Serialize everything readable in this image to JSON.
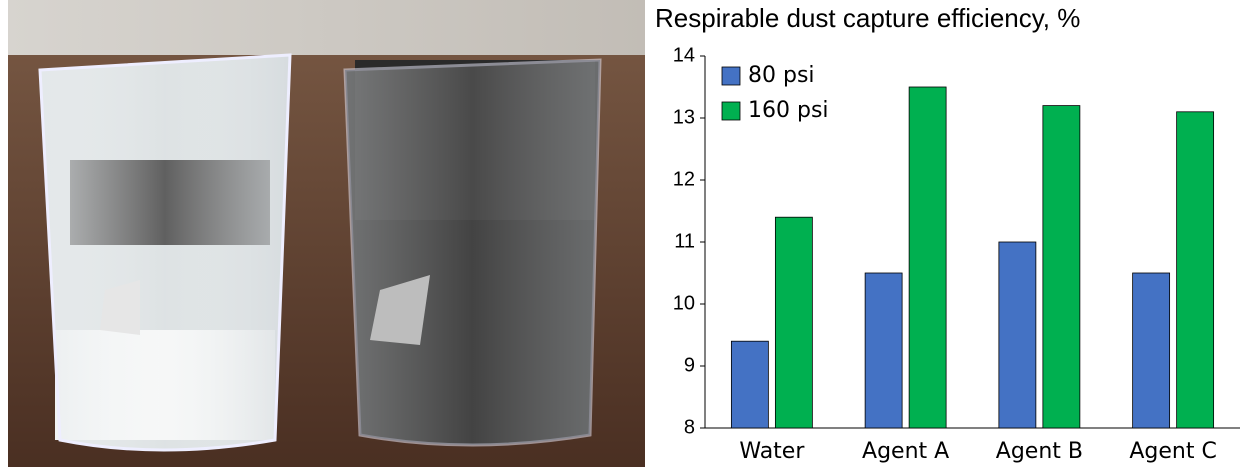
{
  "chart_data": {
    "type": "bar",
    "title": "Respirable dust capture efficiency, %",
    "categories": [
      "Water",
      "Agent A",
      "Agent B",
      "Agent C"
    ],
    "series": [
      {
        "name": "80 psi",
        "color": "#4472c4",
        "values": [
          9.4,
          10.5,
          11.0,
          10.5
        ]
      },
      {
        "name": "160 psi",
        "color": "#00b050",
        "values": [
          11.4,
          13.5,
          13.2,
          13.1
        ]
      }
    ],
    "ylim": [
      8,
      14
    ],
    "yticks": [
      8,
      9,
      10,
      11,
      12,
      13,
      14
    ],
    "grid": false,
    "legend": "top-left"
  }
}
